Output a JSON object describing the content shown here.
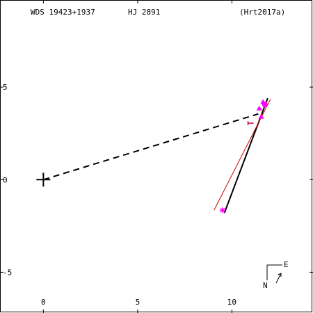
{
  "header": {
    "designation": "WDS 19423+1937",
    "discoverer": "HJ 2891",
    "reference": "(Hrt2017a)"
  },
  "compass": {
    "north": "N",
    "east": "E"
  },
  "colors": {
    "axes": "#000000",
    "orbit": "#000000",
    "prior_orbit": "#cc0000",
    "observations": "#ff00ff",
    "reference_mark": "#cc0033",
    "primary_marker": "#000000"
  },
  "chart_data": {
    "type": "scatter",
    "title": "",
    "xlabel": "",
    "ylabel": "",
    "xlim": [
      -2.3,
      14.3
    ],
    "ylim": [
      -7.2,
      9.7
    ],
    "x_ticks": [
      0,
      5,
      10
    ],
    "x_tick_labels": [
      "0",
      "5",
      "10"
    ],
    "y_ticks": [
      5,
      0,
      -5
    ],
    "y_tick_labels": [
      "5",
      "0",
      "-5"
    ],
    "grid": false,
    "primary": {
      "x": 0,
      "y": 0
    },
    "connector": {
      "from": [
        0,
        0
      ],
      "to": [
        11.4,
        3.55
      ],
      "style": "dashed"
    },
    "series": [
      {
        "kind": "orbit",
        "color": "#000000",
        "points": [
          [
            9.6,
            -1.8
          ],
          [
            11.9,
            4.4
          ]
        ]
      },
      {
        "kind": "prior_orbit",
        "color": "#cc0000",
        "points": [
          [
            9.05,
            -1.65
          ],
          [
            12.05,
            4.35
          ]
        ]
      },
      {
        "kind": "observations",
        "color": "#ff00ff",
        "points": [
          {
            "x": 11.75,
            "y": 4.05,
            "marker": "circle"
          },
          {
            "x": 11.65,
            "y": 4.2,
            "marker": "triangle"
          },
          {
            "x": 11.45,
            "y": 3.85,
            "marker": "triangle"
          },
          {
            "x": 11.55,
            "y": 3.4,
            "marker": "triangle"
          },
          {
            "x": 9.5,
            "y": -1.65,
            "marker": "asterisk"
          }
        ]
      },
      {
        "kind": "reference_mark",
        "color": "#cc0033",
        "points": [
          {
            "x": 11.0,
            "y": 3.05,
            "marker": "tick"
          }
        ]
      }
    ]
  }
}
